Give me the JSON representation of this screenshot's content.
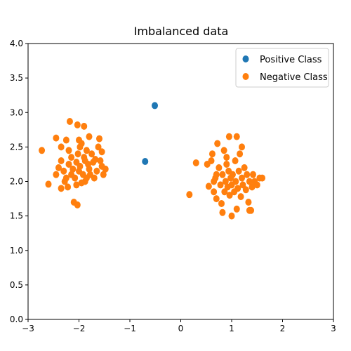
{
  "chart_data": {
    "type": "scatter",
    "title": "Imbalanced data",
    "xlabel": "",
    "ylabel": "",
    "xlim": [
      -3,
      3
    ],
    "ylim": [
      0.0,
      4.0
    ],
    "xticks": [
      -3,
      -2,
      -1,
      0,
      1,
      2,
      3
    ],
    "yticks": [
      0.0,
      0.5,
      1.0,
      1.5,
      2.0,
      2.5,
      3.0,
      3.5,
      4.0
    ],
    "xtick_labels": [
      "−3",
      "−2",
      "−1",
      "0",
      "1",
      "2",
      "3"
    ],
    "ytick_labels": [
      "0.0",
      "0.5",
      "1.0",
      "1.5",
      "2.0",
      "2.5",
      "3.0",
      "3.5",
      "4.0"
    ],
    "grid": false,
    "legend_placement": "top-right",
    "series": [
      {
        "name": "Positive Class",
        "color": "#1f77b4",
        "points": [
          [
            -0.51,
            3.1
          ],
          [
            -0.7,
            2.29
          ]
        ]
      },
      {
        "name": "Negative Class",
        "color": "#ff7f0e",
        "points": [
          [
            -2.73,
            2.45
          ],
          [
            -2.45,
            2.63
          ],
          [
            -2.35,
            2.5
          ],
          [
            -2.25,
            2.6
          ],
          [
            -2.18,
            2.87
          ],
          [
            -2.03,
            2.82
          ],
          [
            -1.9,
            2.8
          ],
          [
            -1.8,
            2.65
          ],
          [
            -1.6,
            2.62
          ],
          [
            -1.55,
            2.43
          ],
          [
            -2.6,
            1.96
          ],
          [
            -2.45,
            2.1
          ],
          [
            -2.4,
            2.2
          ],
          [
            -2.35,
            2.3
          ],
          [
            -2.3,
            2.15
          ],
          [
            -2.25,
            2.05
          ],
          [
            -2.22,
            1.92
          ],
          [
            -2.2,
            2.25
          ],
          [
            -2.15,
            2.35
          ],
          [
            -2.12,
            2.18
          ],
          [
            -2.08,
            2.05
          ],
          [
            -2.05,
            2.28
          ],
          [
            -2.02,
            2.4
          ],
          [
            -2.0,
            2.15
          ],
          [
            -1.98,
            2.22
          ],
          [
            -1.95,
            2.55
          ],
          [
            -1.92,
            2.1
          ],
          [
            -1.9,
            2.35
          ],
          [
            -1.88,
            2.0
          ],
          [
            -1.85,
            2.45
          ],
          [
            -1.82,
            2.25
          ],
          [
            -1.8,
            2.18
          ],
          [
            -1.78,
            2.1
          ],
          [
            -1.75,
            2.4
          ],
          [
            -1.72,
            2.28
          ],
          [
            -1.7,
            2.05
          ],
          [
            -1.68,
            2.32
          ],
          [
            -1.65,
            2.15
          ],
          [
            -1.62,
            2.5
          ],
          [
            -1.58,
            2.3
          ],
          [
            -1.55,
            2.22
          ],
          [
            -1.52,
            2.1
          ],
          [
            -1.48,
            2.18
          ],
          [
            -2.35,
            1.9
          ],
          [
            -2.28,
            2.0
          ],
          [
            -2.15,
            2.1
          ],
          [
            -2.05,
            1.95
          ],
          [
            -1.95,
            1.98
          ],
          [
            -1.88,
            2.3
          ],
          [
            -2.1,
            1.7
          ],
          [
            -2.03,
            1.66
          ],
          [
            -2.0,
            2.6
          ],
          [
            -1.85,
            2.05
          ],
          [
            -2.2,
            2.45
          ],
          [
            -1.98,
            2.5
          ],
          [
            0.17,
            1.81
          ],
          [
            0.3,
            2.27
          ],
          [
            0.52,
            2.25
          ],
          [
            0.55,
            1.93
          ],
          [
            0.6,
            2.3
          ],
          [
            0.62,
            2.4
          ],
          [
            0.65,
            1.85
          ],
          [
            0.68,
            2.05
          ],
          [
            0.7,
            1.75
          ],
          [
            0.72,
            2.55
          ],
          [
            0.75,
            2.2
          ],
          [
            0.78,
            1.95
          ],
          [
            0.8,
            1.68
          ],
          [
            0.82,
            2.1
          ],
          [
            0.85,
            2.45
          ],
          [
            0.86,
            1.85
          ],
          [
            0.88,
            2.0
          ],
          [
            0.9,
            2.25
          ],
          [
            0.92,
            1.92
          ],
          [
            0.94,
            2.15
          ],
          [
            0.95,
            2.65
          ],
          [
            0.96,
            1.8
          ],
          [
            0.98,
            2.05
          ],
          [
            1.0,
            1.5
          ],
          [
            1.0,
            1.95
          ],
          [
            1.02,
            2.1
          ],
          [
            1.05,
            1.85
          ],
          [
            1.07,
            2.3
          ],
          [
            1.08,
            2.0
          ],
          [
            1.1,
            2.65
          ],
          [
            1.12,
            1.9
          ],
          [
            1.14,
            2.15
          ],
          [
            1.16,
            2.4
          ],
          [
            1.18,
            1.78
          ],
          [
            1.2,
            2.05
          ],
          [
            1.22,
            1.95
          ],
          [
            1.25,
            2.2
          ],
          [
            1.28,
            1.88
          ],
          [
            1.3,
            2.1
          ],
          [
            1.33,
            1.7
          ],
          [
            1.35,
            2.0
          ],
          [
            1.38,
            1.58
          ],
          [
            1.4,
            1.92
          ],
          [
            1.42,
            2.1
          ],
          [
            1.45,
            2.0
          ],
          [
            1.5,
            1.95
          ],
          [
            1.55,
            2.05
          ],
          [
            1.6,
            2.05
          ],
          [
            1.35,
            1.58
          ],
          [
            0.7,
            2.1
          ],
          [
            0.82,
            1.55
          ],
          [
            1.1,
            1.6
          ],
          [
            1.2,
            2.5
          ],
          [
            0.9,
            2.35
          ],
          [
            0.65,
            2.0
          ]
        ]
      }
    ]
  }
}
